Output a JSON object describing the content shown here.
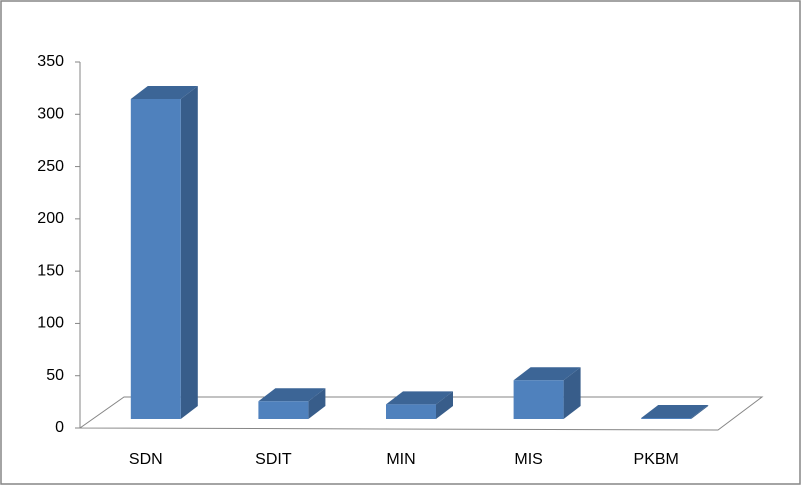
{
  "chart_data": {
    "type": "bar3d",
    "categories": [
      "SDN",
      "SDIT",
      "MIN",
      "MIS",
      "PKBM"
    ],
    "values": [
      306,
      17,
      14,
      37,
      1
    ],
    "color": "#4f81bd",
    "ylim": [
      0,
      350
    ],
    "yticks": [
      0,
      50,
      100,
      150,
      200,
      250,
      300,
      350
    ]
  }
}
